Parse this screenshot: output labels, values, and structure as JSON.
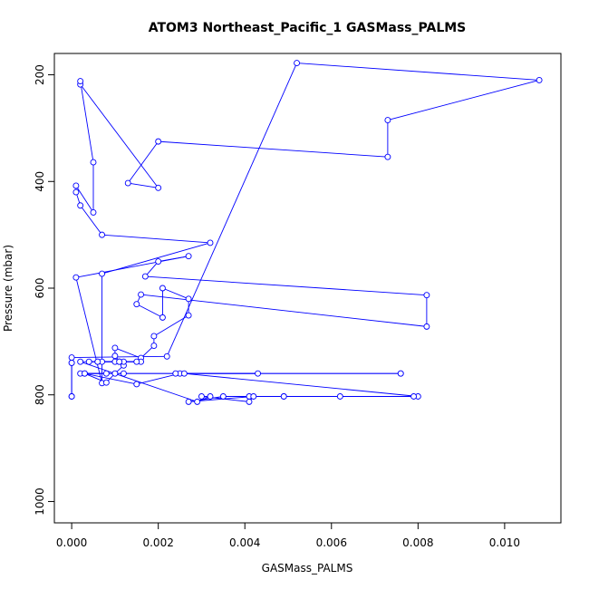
{
  "chart_data": {
    "type": "line",
    "title": "ATOM3 Northeast_Pacific_1 GASMass_PALMS",
    "xlabel": "GASMass_PALMS",
    "ylabel": "Pressure (mbar)",
    "xlim": [
      -0.0004,
      0.0113
    ],
    "ylim": [
      1040,
      160
    ],
    "y_inverted": true,
    "x_ticks": [
      0.0,
      0.002,
      0.004,
      0.006,
      0.008,
      0.01
    ],
    "x_tick_labels": [
      "0.000",
      "0.002",
      "0.004",
      "0.006",
      "0.008",
      "0.010"
    ],
    "y_ticks": [
      200,
      400,
      600,
      800,
      1000
    ],
    "y_tick_labels": [
      "200",
      "400",
      "600",
      "800",
      "1000"
    ],
    "grid": false,
    "legend": "none",
    "series_color": "#0000ff",
    "marker": "open-circle",
    "x": [
      0.0,
      0.0,
      0.0,
      0.0,
      0.0,
      0.0022,
      0.0052,
      0.0108,
      0.0073,
      0.0073,
      0.002,
      0.0013,
      0.002,
      0.0002,
      0.0002,
      0.0005,
      0.0005,
      0.0001,
      0.0001,
      0.0002,
      0.0007,
      0.0032,
      0.0007,
      0.0007,
      0.0001,
      0.0027,
      0.002,
      0.0017,
      0.0082,
      0.0082,
      0.0016,
      0.0015,
      0.0021,
      0.0021,
      0.0027,
      0.0027,
      0.0019,
      0.0019,
      0.0016,
      0.001,
      0.001,
      0.0012,
      0.001,
      0.0008,
      0.0003,
      0.0015,
      0.0025,
      0.0024,
      0.0076,
      0.0076,
      0.0012,
      0.0002,
      0.0008,
      0.0003,
      0.0043,
      0.0026,
      0.008,
      0.0079,
      0.0062,
      0.0049,
      0.0049,
      0.0041,
      0.0035,
      0.0027,
      0.0042,
      0.0041,
      0.003,
      0.0032,
      0.0029,
      0.0002,
      0.0006,
      0.0011,
      0.0011,
      0.0016,
      0.0007,
      0.0012,
      0.0015,
      0.001,
      0.0006,
      0.0004,
      0.0011
    ],
    "y": [
      740,
      740,
      803,
      803,
      730,
      728,
      178,
      210,
      285,
      354,
      325,
      403,
      412,
      218,
      212,
      364,
      458,
      408,
      420,
      445,
      500,
      515,
      573,
      778,
      580,
      540,
      550,
      578,
      613,
      672,
      612,
      630,
      655,
      600,
      620,
      651,
      690,
      708,
      731,
      712,
      727,
      745,
      760,
      777,
      760,
      780,
      760,
      760,
      760,
      760,
      760,
      760,
      760,
      760,
      760,
      760,
      803,
      803,
      803,
      803,
      803,
      803,
      803,
      813,
      803,
      813,
      803,
      803,
      813,
      738,
      738,
      738,
      738,
      738,
      738,
      738,
      738,
      738,
      738,
      738,
      738
    ]
  }
}
